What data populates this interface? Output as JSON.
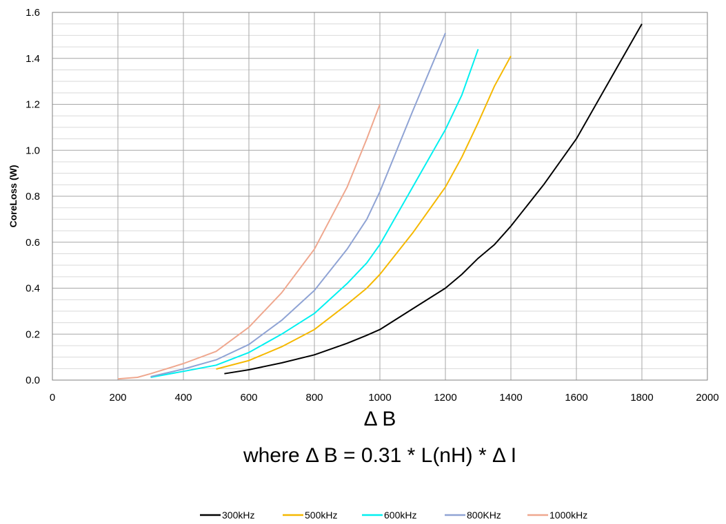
{
  "chart_data": {
    "type": "line",
    "xlabel": "Δ B",
    "xlabel_sub": "where  Δ B = 0.31 * L(nH) *  Δ I",
    "ylabel": "CoreLoss (W)",
    "xlim": [
      0,
      2000
    ],
    "ylim": [
      0,
      1.6
    ],
    "xticks": [
      "0",
      "200",
      "400",
      "600",
      "800",
      "1000",
      "1200",
      "1400",
      "1600",
      "1800",
      "2000"
    ],
    "yticks": [
      "0.0",
      "0.2",
      "0.4",
      "0.6",
      "0.8",
      "1.0",
      "1.2",
      "1.4",
      "1.6"
    ],
    "grid": true,
    "legend_position": "bottom",
    "series": [
      {
        "name": "300kHz",
        "color": "#000000",
        "x": [
          525,
          600,
          700,
          800,
          900,
          960,
          1000,
          1100,
          1200,
          1250,
          1300,
          1350,
          1400,
          1500,
          1600,
          1700,
          1800
        ],
        "y": [
          0.028,
          0.045,
          0.075,
          0.11,
          0.16,
          0.195,
          0.22,
          0.31,
          0.4,
          0.46,
          0.53,
          0.59,
          0.67,
          0.85,
          1.05,
          1.3,
          1.55
        ]
      },
      {
        "name": "500kHz",
        "color": "#F5B800",
        "x": [
          500,
          600,
          700,
          800,
          900,
          960,
          1000,
          1100,
          1200,
          1250,
          1300,
          1350,
          1400
        ],
        "y": [
          0.048,
          0.085,
          0.145,
          0.22,
          0.33,
          0.4,
          0.46,
          0.64,
          0.84,
          0.97,
          1.12,
          1.28,
          1.41
        ]
      },
      {
        "name": "600kHz",
        "color": "#00F0F0",
        "x": [
          300,
          400,
          500,
          600,
          700,
          800,
          900,
          960,
          1000,
          1100,
          1200,
          1250,
          1300
        ],
        "y": [
          0.012,
          0.038,
          0.065,
          0.12,
          0.2,
          0.29,
          0.42,
          0.51,
          0.59,
          0.84,
          1.09,
          1.24,
          1.44
        ]
      },
      {
        "name": "800KHz",
        "color": "#8FA3D4",
        "x": [
          300,
          400,
          500,
          600,
          700,
          800,
          900,
          960,
          1000,
          1100,
          1200
        ],
        "y": [
          0.015,
          0.048,
          0.088,
          0.155,
          0.26,
          0.39,
          0.57,
          0.7,
          0.82,
          1.17,
          1.51
        ]
      },
      {
        "name": "1000kHz",
        "color": "#EFA78E",
        "x": [
          200,
          260,
          300,
          400,
          500,
          600,
          700,
          800,
          900,
          960,
          1000
        ],
        "y": [
          0.005,
          0.012,
          0.028,
          0.072,
          0.125,
          0.23,
          0.38,
          0.57,
          0.84,
          1.05,
          1.2
        ]
      }
    ]
  }
}
